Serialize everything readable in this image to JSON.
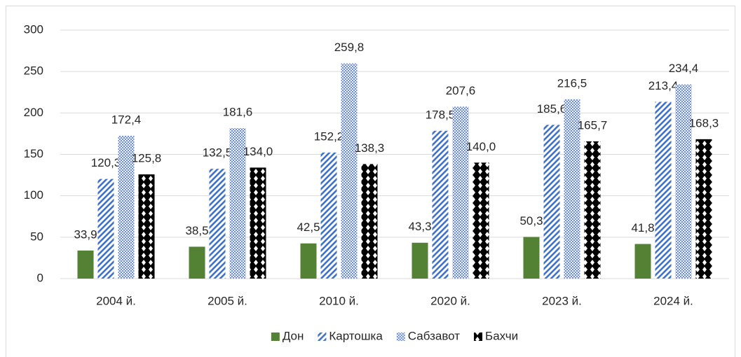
{
  "chart_data": {
    "type": "bar",
    "categories": [
      "2004 й.",
      "2005 й.",
      "2010 й.",
      "2020 й.",
      "2023 й.",
      "2024 й."
    ],
    "series": [
      {
        "name": "Дон",
        "color": "#548235",
        "pattern": "solid",
        "values": [
          33.9,
          38.5,
          42.5,
          43.3,
          50.3,
          41.8
        ],
        "value_labels": [
          "33,9",
          "38,5",
          "42,5",
          "43,3",
          "50,3",
          "41,8"
        ]
      },
      {
        "name": "Картошка",
        "color": "#4472c4",
        "pattern": "diagonal",
        "values": [
          120.3,
          132.5,
          152.2,
          178.5,
          185.6,
          213.4
        ],
        "value_labels": [
          "120,3",
          "132,5",
          "152,2",
          "178,5",
          "185,6",
          "213,4"
        ]
      },
      {
        "name": "Сабзавот",
        "color": "#6f8fd0",
        "pattern": "checker",
        "values": [
          172.4,
          181.6,
          259.8,
          207.6,
          216.5,
          234.4
        ],
        "value_labels": [
          "172,4",
          "181,6",
          "259,8",
          "207,6",
          "216,5",
          "234,4"
        ]
      },
      {
        "name": "Бахчи",
        "color": "#000000",
        "pattern": "diamond",
        "values": [
          125.8,
          134.0,
          138.3,
          140.0,
          165.7,
          168.3
        ],
        "value_labels": [
          "125,8",
          "134,0",
          "138,3",
          "140,0",
          "165,7",
          "168,3"
        ]
      }
    ],
    "ylim": [
      0,
      300
    ],
    "yticks": [
      0,
      50,
      100,
      150,
      200,
      250,
      300
    ],
    "grid": true,
    "legend": "bottom"
  }
}
